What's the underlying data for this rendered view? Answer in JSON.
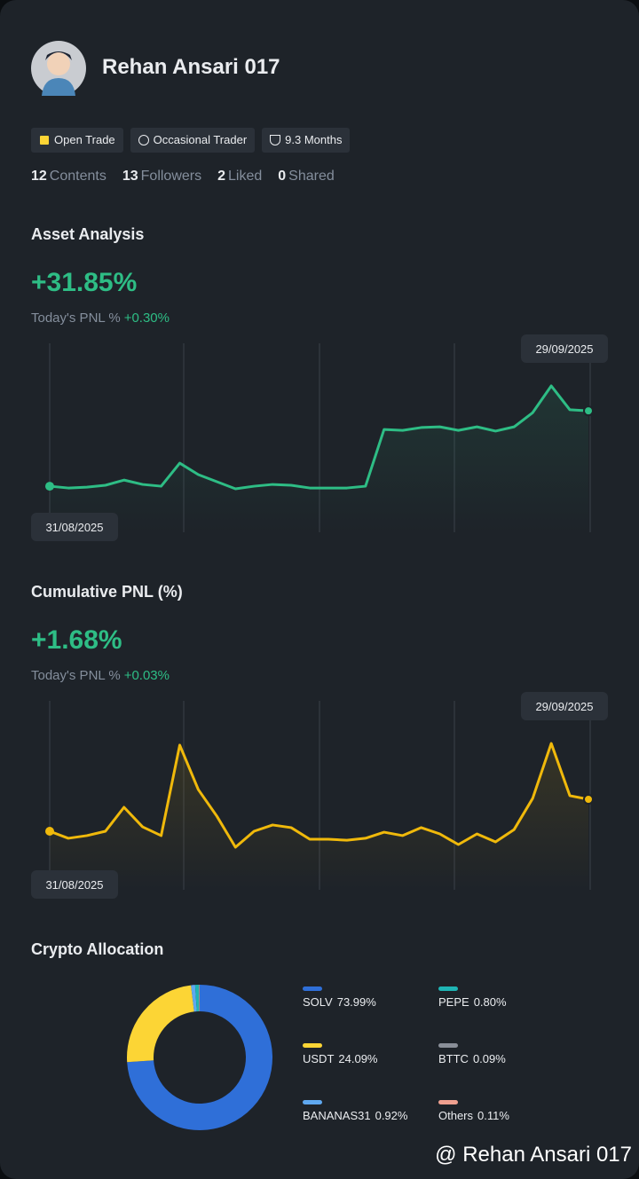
{
  "header": {
    "name": "Rehan Ansari 017",
    "tags": [
      "Open Trade",
      "Occasional Trader",
      "9.3 Months"
    ],
    "stats": [
      {
        "count": 12,
        "label": "Contents"
      },
      {
        "count": 13,
        "label": "Followers"
      },
      {
        "count": 2,
        "label": "Liked"
      },
      {
        "count": 0,
        "label": "Shared"
      }
    ]
  },
  "sections": [
    {
      "title": "Asset Analysis",
      "value": "+31.85%",
      "today_label": "Today's PNL %",
      "today_value": "+0.30%"
    },
    {
      "title": "Cumulative PNL (%)",
      "value": "+1.68%",
      "today_label": "Today's PNL %",
      "today_value": "+0.03%"
    },
    {
      "title": "Crypto Allocation"
    }
  ],
  "chart_data": [
    {
      "type": "line",
      "color": "#2ebd85",
      "categories": [
        "31/08/2025",
        null,
        null,
        null,
        null,
        null,
        null,
        null,
        null,
        null,
        null,
        null,
        null,
        null,
        null,
        null,
        null,
        null,
        null,
        null,
        null,
        null,
        null,
        null,
        null,
        null,
        null,
        null,
        null,
        "29/09/2025"
      ],
      "values": [
        0,
        -0.75,
        -0.4,
        0.4,
        2.6,
        0.75,
        0,
        9.75,
        4.9,
        1.9,
        -1.1,
        0,
        0.75,
        0.4,
        -0.75,
        -0.75,
        -0.75,
        0,
        24,
        23.6,
        24.8,
        25.1,
        23.6,
        25.1,
        23.3,
        25.1,
        31.1,
        42.4,
        32.3,
        31.85
      ]
    },
    {
      "type": "line",
      "color": "#f0b90b",
      "categories": [
        "31/08/2025",
        null,
        null,
        null,
        null,
        null,
        null,
        null,
        null,
        null,
        null,
        null,
        null,
        null,
        null,
        null,
        null,
        null,
        null,
        null,
        null,
        null,
        null,
        null,
        null,
        null,
        null,
        null,
        null,
        "29/09/2025"
      ],
      "values": [
        0,
        -0.37,
        -0.23,
        0,
        1.26,
        0.23,
        -0.23,
        4.53,
        2.19,
        0.79,
        -0.84,
        0,
        0.33,
        0.19,
        -0.42,
        -0.42,
        -0.47,
        -0.37,
        -0.05,
        -0.23,
        0.19,
        -0.14,
        -0.7,
        -0.14,
        -0.56,
        0.09,
        1.73,
        4.62,
        1.87,
        1.68
      ]
    },
    {
      "type": "pie",
      "categories": [
        "SOLV",
        "USDT",
        "BANANAS31",
        "PEPE",
        "BTTC",
        "Others"
      ],
      "values": [
        73.99,
        24.09,
        0.92,
        0.8,
        0.09,
        0.11
      ],
      "value_labels": [
        "73.99%",
        "24.09%",
        "0.92%",
        "0.80%",
        "0.09%",
        "0.11%"
      ],
      "colors": [
        "#2f6fd8",
        "#fcd535",
        "#5fa8f0",
        "#1fb5b5",
        "#8a8f98",
        "#f0a090"
      ]
    }
  ],
  "watermark": "@ Rehan Ansari 017"
}
